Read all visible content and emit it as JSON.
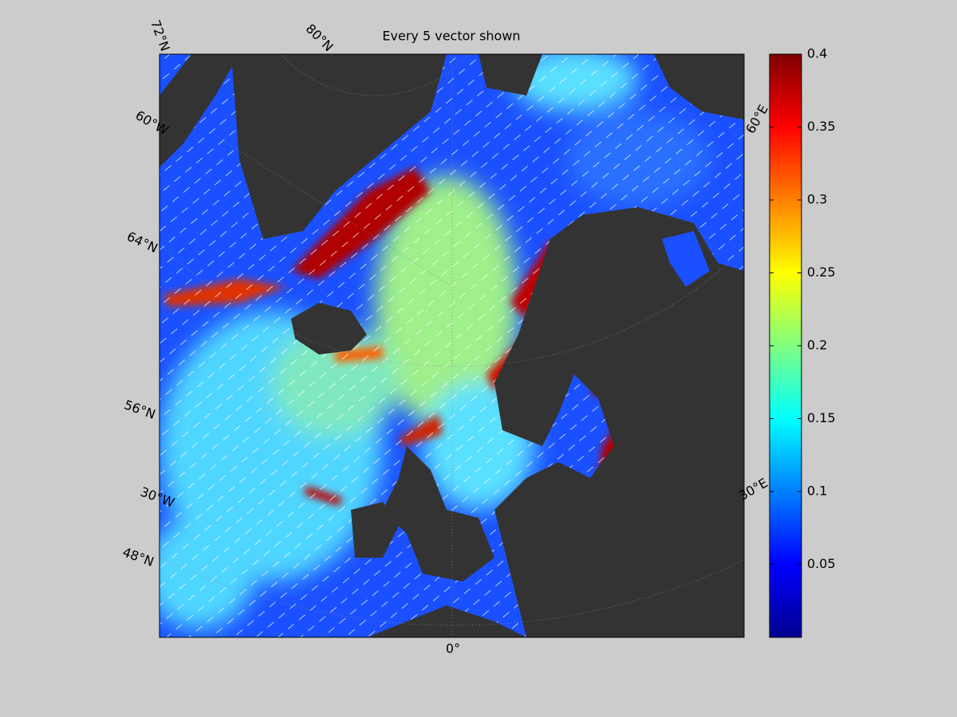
{
  "title": "Every 5 vector shown",
  "graticule_labels": [
    "72°N",
    "80°N",
    "60°W",
    "64°N",
    "56°N",
    "30°W",
    "48°N",
    "0°",
    "30°E",
    "60°E"
  ],
  "colorbar": {
    "clim": [
      0,
      0.4
    ],
    "ticks": [
      0.05,
      0.1,
      0.15,
      0.2,
      0.25,
      0.3,
      0.35,
      0.4
    ]
  }
}
